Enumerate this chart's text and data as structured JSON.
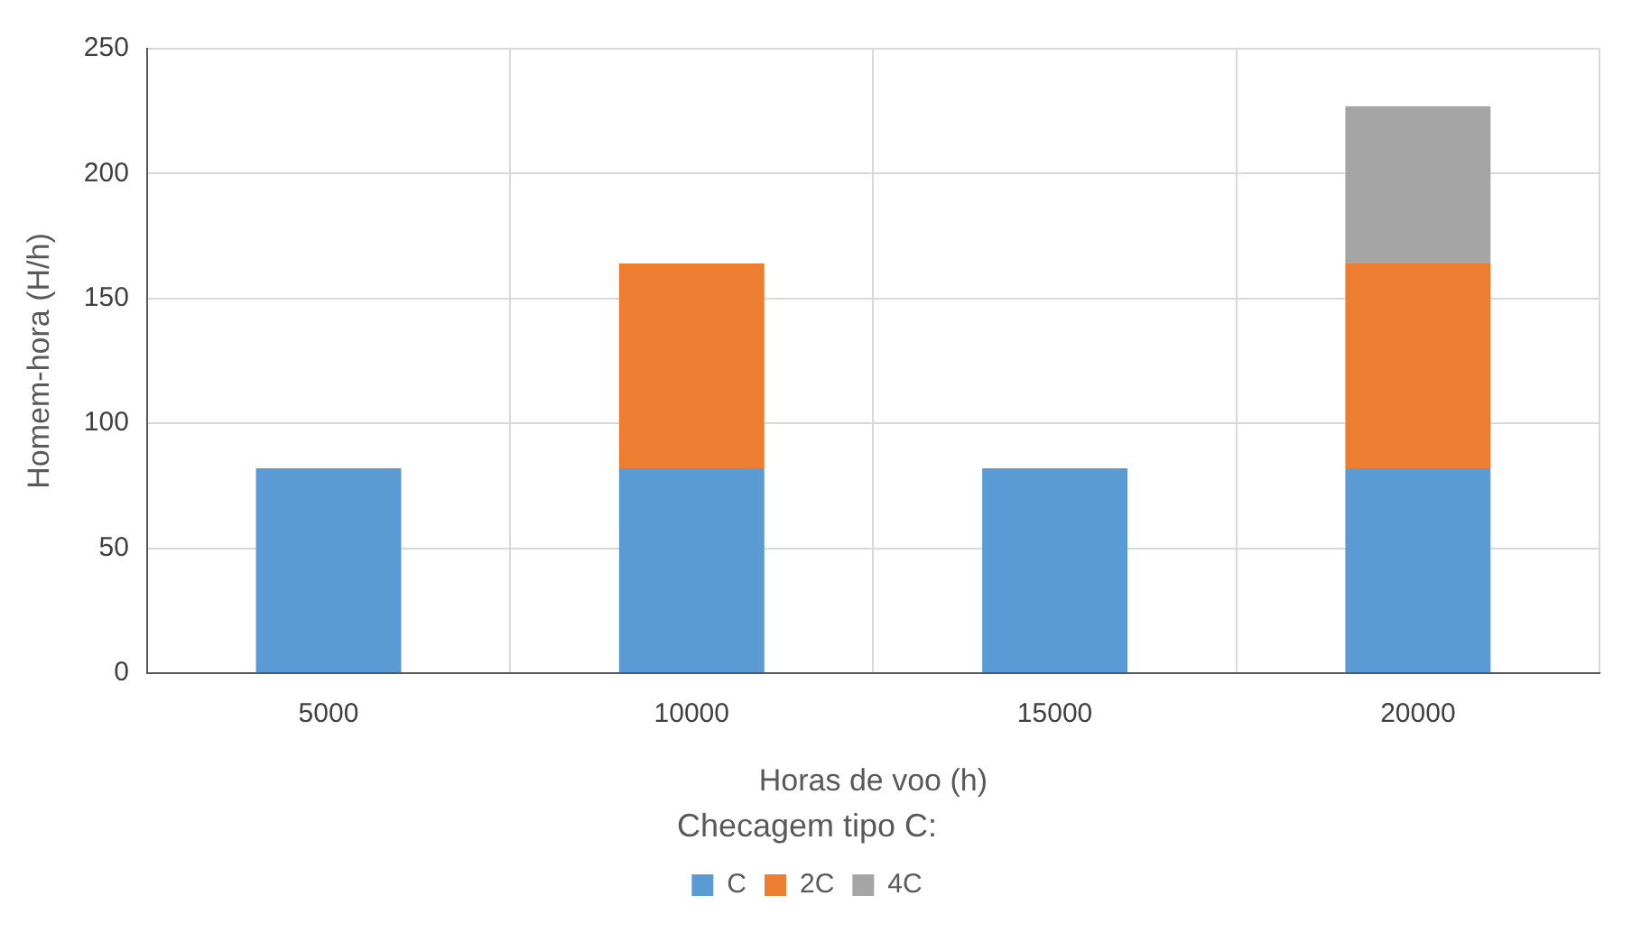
{
  "chart_data": {
    "type": "bar",
    "xlabel": "Horas de voo (h)",
    "ylabel": "Homem-hora (H/h)",
    "legend_title": "Checagem tipo C:",
    "categories": [
      "5000",
      "10000",
      "15000",
      "20000"
    ],
    "series": [
      {
        "name": "C",
        "color": "#5b9bd5",
        "values": [
          82,
          82,
          82,
          82
        ]
      },
      {
        "name": "2C",
        "color": "#ed7d31",
        "values": [
          null,
          82,
          null,
          82
        ]
      },
      {
        "name": "4C",
        "color": "#a5a5a5",
        "values": [
          null,
          null,
          null,
          63
        ]
      }
    ],
    "stacked": true,
    "ylim": [
      0,
      250
    ],
    "yticks": [
      0,
      50,
      100,
      150,
      200,
      250
    ],
    "grid": true,
    "legend": "bottom"
  }
}
